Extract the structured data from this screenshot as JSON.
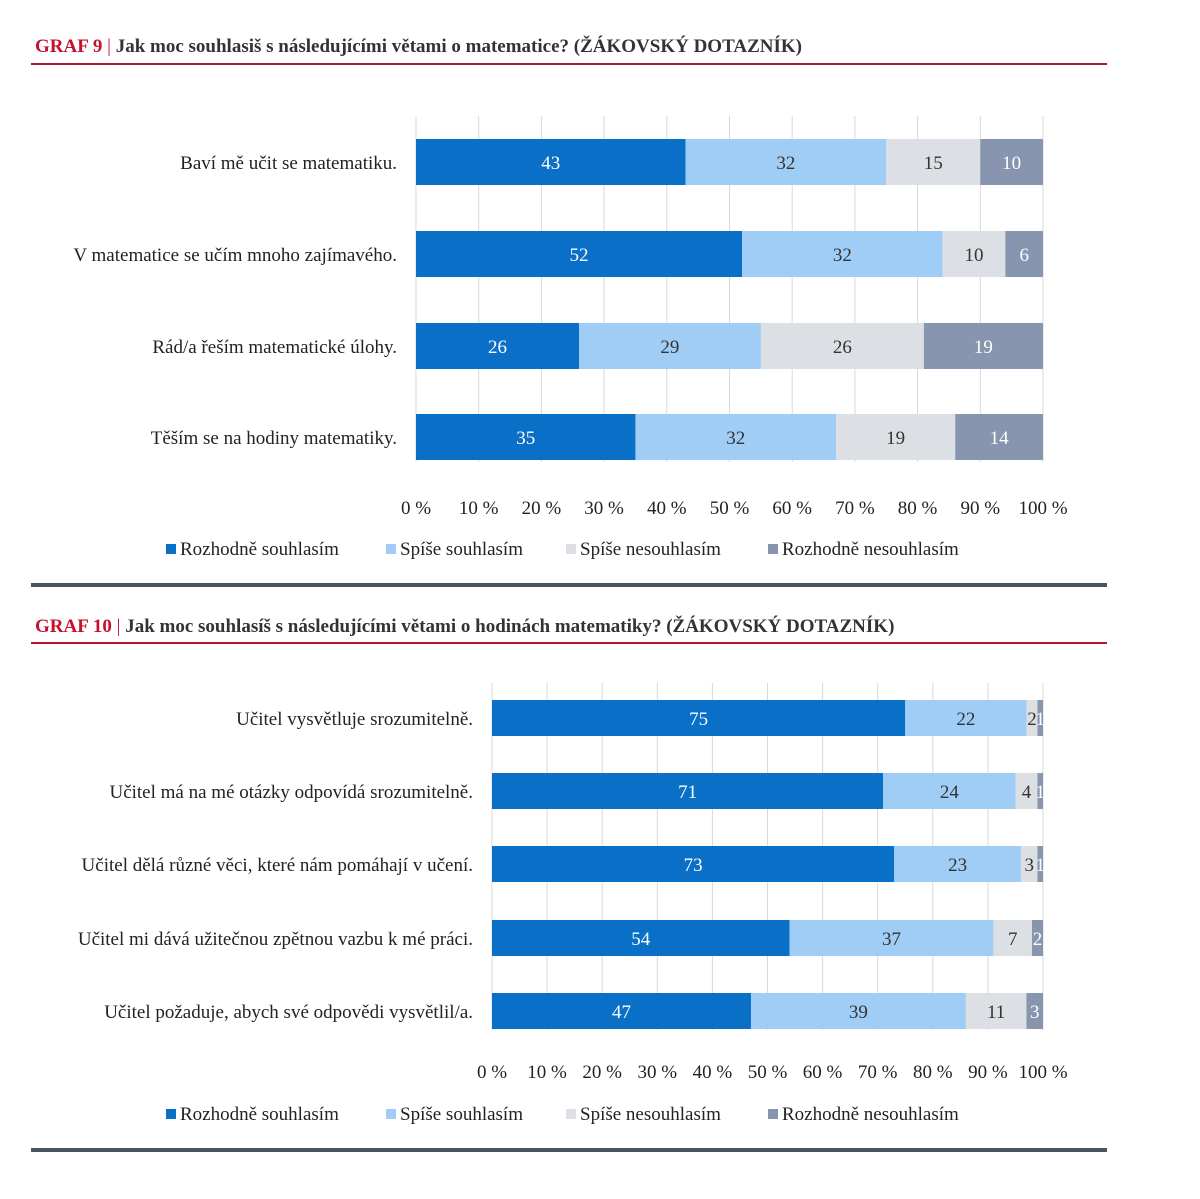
{
  "colors": {
    "rozhodne_souhlasim": "#0a6fc7",
    "spise_souhlasim": "#9fcdf6",
    "spise_nesouhlasim": "#dcdfe4",
    "rozhodne_nesouhlasim": "#8796ae",
    "title_accent": "#c8102e",
    "title_rule": "#b4142d",
    "bottom_rule": "#4b5560",
    "grid": "#d9d9d9"
  },
  "chart_data": [
    {
      "type": "bar",
      "orientation": "horizontal-stacked-100",
      "title_num": "GRAF 9",
      "title_sep": "|",
      "title_text": "Jak moc souhlasiš s následujícími větami o matematice? (ŽÁKOVSKÝ DOTAZNÍK)",
      "categories": [
        "Baví mě učit se matematiku.",
        "V matematice se učím mnoho zajímavého.",
        "Rád/a řeším matematické úlohy.",
        "Těším se na hodiny matematiky."
      ],
      "series": [
        {
          "name": "Rozhodně souhlasím",
          "values": [
            43,
            52,
            26,
            35
          ],
          "labels": [
            "43",
            "52",
            "26",
            "35"
          ]
        },
        {
          "name": "Spíše souhlasím",
          "values": [
            32,
            32,
            29,
            32
          ],
          "labels": [
            "32",
            "32",
            "29",
            "32"
          ]
        },
        {
          "name": "Spíše nesouhlasím",
          "values": [
            15,
            10,
            26,
            19
          ],
          "labels": [
            "15",
            "10",
            "26",
            "19"
          ]
        },
        {
          "name": "Rozhodně nesouhlasím",
          "values": [
            10,
            6,
            19,
            14
          ],
          "labels": [
            "10",
            "6",
            "19",
            "14"
          ]
        }
      ],
      "x_ticks": [
        "0 %",
        "10 %",
        "20 %",
        "30 %",
        "40 %",
        "50 %",
        "60 %",
        "70 %",
        "80 %",
        "90 %",
        "100 %"
      ],
      "xlim": [
        0,
        100
      ],
      "grid": true,
      "legend_position": "bottom"
    },
    {
      "type": "bar",
      "orientation": "horizontal-stacked-100",
      "title_num": "GRAF 10",
      "title_sep": "|",
      "title_text": "Jak moc souhlasíš s následujícími větami o hodinách matematiky? (ŽÁKOVSKÝ DOTAZNÍK)",
      "categories": [
        "Učitel vysvětluje srozumitelně.",
        "Učitel má na mé otázky odpovídá srozumitelně.",
        "Učitel dělá různé věci, které nám pomáhají v učení.",
        "Učitel mi dává užitečnou zpětnou vazbu k mé práci.",
        "Učitel požaduje, abych své odpovědi vysvětlil/a."
      ],
      "series": [
        {
          "name": "Rozhodně souhlasím",
          "values": [
            75,
            71,
            73,
            54,
            47
          ],
          "labels": [
            "75",
            "71",
            "73",
            "54",
            "47"
          ]
        },
        {
          "name": "Spíše souhlasím",
          "values": [
            22,
            24,
            23,
            37,
            39
          ],
          "labels": [
            "22",
            "24",
            "23",
            "37",
            "39"
          ]
        },
        {
          "name": "Spíše nesouhlasím",
          "values": [
            2,
            4,
            3,
            7,
            11
          ],
          "labels": [
            "2",
            "4",
            "3",
            "7",
            "11"
          ]
        },
        {
          "name": "Rozhodně nesouhlasím",
          "values": [
            1,
            1,
            1,
            2,
            3
          ],
          "labels": [
            "1",
            "1",
            "1",
            "2",
            "3"
          ]
        }
      ],
      "x_ticks": [
        "0 %",
        "10 %",
        "20 %",
        "30 %",
        "40 %",
        "50 %",
        "60 %",
        "70 %",
        "80 %",
        "90 %",
        "100 %"
      ],
      "xlim": [
        0,
        100
      ],
      "grid": true,
      "legend_position": "bottom"
    }
  ]
}
